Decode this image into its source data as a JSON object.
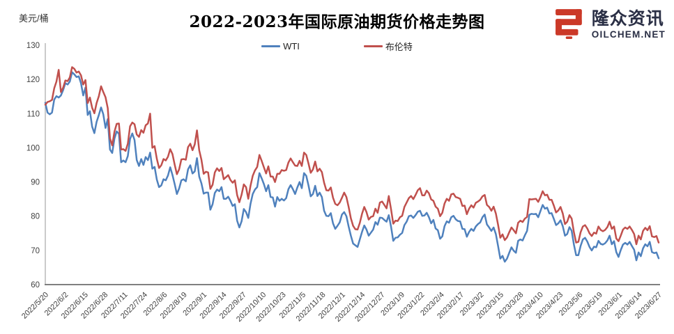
{
  "page": {
    "title": "2022-2023年国际原油期货价格走势图",
    "unit": "美元/桶"
  },
  "logo": {
    "brand": "隆众资讯",
    "site": "OILCHEM.NET",
    "mark_color": "#cb3928",
    "text_color": "#2a2f45"
  },
  "legend": {
    "items": [
      {
        "label": "WTI",
        "color": "#4F81BD"
      },
      {
        "label": "布伦特",
        "color": "#C0504D"
      }
    ]
  },
  "chart_data": {
    "type": "line",
    "title": "2022-2023年国际原油期货价格走势图",
    "xlabel": "",
    "ylabel": "美元/桶",
    "ylim": [
      60,
      130
    ],
    "yticks": [
      60,
      70,
      80,
      90,
      100,
      110,
      120,
      130
    ],
    "grid": false,
    "legend_position": "top-center",
    "x_tick_labels": [
      "2022/5/20",
      "2022/6/2",
      "2022/6/15",
      "2022/6/28",
      "2022/7/11",
      "2022/7/24",
      "2022/8/6",
      "2022/8/19",
      "2022/9/1",
      "2022/9/14",
      "2022/9/27",
      "2022/10/10",
      "2022/10/23",
      "2022/11/5",
      "2022/11/18",
      "2022/12/1",
      "2022/12/14",
      "2022/12/27",
      "2023/1/9",
      "2023/1/22",
      "2023/2/4",
      "2023/2/17",
      "2023/3/2",
      "2023/3/15",
      "2023/3/28",
      "2023/4/10",
      "2023/4/23",
      "2023/5/6",
      "2023/5/19",
      "2023/6/1",
      "2023/6/14",
      "2023/6/27"
    ],
    "x_note": "daily settlement prices, USD/barrel, evenly spaced trading days from 2022/5/20 to 2023/6/27",
    "series": [
      {
        "name": "WTI",
        "color": "#4F81BD",
        "values": [
          113.2,
          110.3,
          109.8,
          110.3,
          114.1,
          115.1,
          114.7,
          115.3,
          116.9,
          118.9,
          118.5,
          119.4,
          122.1,
          121.5,
          120.7,
          120.9,
          118.9,
          115.3,
          117.6,
          109.6,
          110.7,
          106.2,
          104.3,
          107.6,
          109.6,
          111.8,
          109.8,
          105.8,
          108.4,
          99.5,
          98.5,
          102.7,
          104.8,
          104.1,
          95.8,
          96.3,
          95.8,
          97.6,
          102.6,
          104.2,
          102.3,
          96.4,
          94.7,
          96.7,
          95.0,
          97.3,
          96.4,
          98.6,
          93.9,
          94.4,
          90.7,
          88.5,
          89.0,
          90.8,
          90.5,
          91.9,
          94.3,
          92.1,
          89.4,
          86.5,
          88.1,
          90.5,
          90.8,
          90.2,
          93.7,
          94.9,
          92.5,
          93.1,
          97.0,
          91.6,
          89.6,
          86.6,
          86.9,
          86.9,
          81.9,
          83.5,
          86.8,
          87.8,
          87.3,
          88.5,
          85.1,
          85.1,
          85.7,
          84.5,
          83.0,
          83.5,
          78.7,
          76.7,
          78.5,
          82.1,
          81.2,
          79.5,
          83.6,
          86.5,
          87.8,
          88.5,
          92.6,
          91.1,
          89.4,
          87.3,
          89.1,
          85.6,
          85.5,
          82.8,
          85.6,
          84.5,
          85.1,
          84.6,
          85.3,
          87.9,
          89.1,
          87.9,
          86.5,
          88.4,
          90.0,
          88.2,
          92.6,
          91.8,
          89.0,
          85.8,
          86.5,
          88.9,
          85.9,
          86.9,
          85.6,
          81.6,
          80.1,
          80.0,
          80.9,
          77.9,
          76.3,
          77.2,
          78.2,
          80.5,
          81.2,
          80.0,
          77.0,
          74.3,
          72.0,
          71.5,
          71.0,
          73.2,
          75.4,
          77.3,
          76.1,
          74.3,
          75.2,
          76.1,
          78.3,
          77.5,
          79.6,
          79.5,
          78.9,
          78.4,
          80.3,
          77.0,
          72.8,
          73.7,
          73.8,
          74.6,
          75.1,
          77.4,
          78.4,
          80.0,
          80.2,
          79.5,
          80.3,
          81.3,
          81.6,
          80.1,
          80.2,
          81.0,
          79.7,
          77.9,
          78.9,
          76.4,
          75.9,
          73.4,
          74.1,
          77.1,
          78.5,
          78.1,
          79.7,
          80.1,
          79.1,
          78.6,
          78.5,
          76.3,
          76.2,
          74.0,
          75.4,
          76.3,
          75.7,
          77.0,
          77.7,
          78.2,
          79.7,
          80.5,
          77.6,
          76.7,
          75.7,
          76.7,
          74.8,
          71.3,
          67.6,
          68.4,
          66.7,
          67.6,
          69.3,
          70.9,
          69.9,
          69.3,
          72.8,
          73.2,
          72.9,
          74.4,
          75.7,
          80.4,
          80.7,
          80.6,
          80.7,
          79.7,
          81.5,
          83.3,
          82.2,
          82.5,
          80.8,
          80.9,
          79.2,
          77.4,
          77.9,
          78.8,
          77.1,
          74.3,
          74.8,
          76.8,
          75.7,
          71.7,
          68.6,
          68.6,
          71.3,
          73.2,
          73.7,
          72.6,
          71.0,
          70.0,
          71.1,
          70.9,
          72.8,
          71.9,
          71.7,
          72.1,
          72.9,
          74.3,
          71.8,
          72.7,
          69.5,
          68.1,
          70.1,
          71.7,
          72.2,
          71.7,
          72.5,
          71.3,
          70.2,
          67.1,
          69.4,
          68.3,
          70.6,
          71.8,
          71.2,
          72.5,
          69.5,
          69.2,
          69.4,
          67.7
        ]
      },
      {
        "name": "布伦特",
        "color": "#C0504D",
        "values": [
          112.6,
          113.4,
          113.6,
          114.0,
          117.4,
          119.4,
          122.8,
          116.3,
          117.6,
          119.7,
          119.5,
          120.6,
          123.6,
          123.1,
          122.0,
          122.3,
          121.2,
          118.5,
          119.8,
          113.1,
          114.7,
          111.7,
          110.1,
          113.1,
          115.1,
          118.0,
          116.3,
          114.8,
          111.6,
          102.8,
          100.7,
          104.7,
          107.0,
          107.1,
          99.5,
          99.6,
          99.1,
          101.2,
          106.3,
          107.4,
          106.9,
          103.9,
          103.2,
          105.2,
          104.4,
          106.6,
          107.1,
          110.0,
          100.0,
          100.5,
          96.8,
          94.1,
          94.9,
          96.7,
          96.3,
          97.4,
          99.6,
          98.2,
          95.1,
          92.3,
          93.7,
          96.6,
          96.7,
          96.5,
          100.2,
          101.2,
          99.3,
          101.0,
          105.1,
          99.3,
          96.5,
          92.4,
          93.0,
          92.8,
          88.0,
          89.2,
          92.8,
          94.0,
          93.2,
          94.1,
          90.8,
          91.4,
          92.0,
          90.6,
          89.8,
          90.5,
          86.2,
          84.1,
          86.3,
          89.3,
          88.5,
          85.1,
          88.9,
          91.8,
          93.4,
          94.4,
          97.9,
          96.2,
          94.3,
          92.5,
          94.6,
          91.6,
          91.6,
          90.0,
          92.4,
          92.4,
          93.5,
          93.3,
          93.5,
          95.7,
          96.9,
          95.8,
          94.8,
          94.7,
          96.2,
          94.7,
          98.6,
          97.9,
          95.4,
          92.7,
          93.7,
          96.0,
          93.1,
          93.9,
          92.9,
          89.8,
          87.6,
          87.5,
          88.4,
          85.4,
          83.6,
          83.2,
          84.0,
          85.4,
          86.9,
          85.6,
          82.7,
          79.4,
          77.2,
          76.2,
          76.1,
          78.0,
          80.7,
          82.7,
          81.2,
          79.0,
          79.8,
          80.0,
          82.2,
          81.0,
          84.0,
          84.3,
          83.3,
          82.3,
          85.9,
          82.1,
          77.8,
          78.7,
          78.6,
          79.7,
          80.1,
          82.7,
          84.0,
          85.3,
          85.9,
          85.0,
          86.2,
          87.6,
          88.2,
          86.1,
          86.1,
          87.5,
          86.7,
          84.9,
          84.5,
          82.8,
          82.2,
          80.0,
          81.0,
          83.7,
          85.1,
          84.5,
          86.4,
          86.6,
          85.6,
          85.4,
          85.1,
          83.0,
          83.1,
          80.6,
          82.2,
          83.2,
          82.5,
          83.9,
          84.3,
          84.8,
          85.8,
          86.2,
          83.3,
          82.7,
          81.6,
          82.8,
          80.8,
          77.5,
          73.7,
          74.7,
          73.0,
          73.8,
          75.3,
          76.7,
          75.9,
          75.0,
          78.1,
          78.7,
          78.3,
          79.3,
          79.8,
          85.0,
          84.9,
          85.0,
          85.1,
          84.2,
          85.6,
          87.3,
          86.1,
          86.3,
          84.8,
          84.8,
          83.1,
          81.1,
          81.7,
          82.7,
          80.8,
          77.7,
          78.4,
          80.3,
          79.3,
          75.3,
          72.3,
          72.5,
          75.3,
          77.0,
          77.4,
          76.4,
          75.0,
          74.2,
          75.2,
          74.9,
          77.0,
          76.0,
          75.6,
          76.0,
          76.8,
          78.4,
          76.3,
          77.0,
          73.5,
          72.7,
          74.3,
          76.1,
          76.7,
          76.3,
          77.0,
          76.0,
          74.8,
          71.8,
          74.3,
          73.2,
          75.7,
          76.6,
          75.9,
          77.1,
          74.1,
          73.9,
          74.2,
          72.3
        ]
      }
    ],
    "axis_colors": {
      "y_axis": "#a6a6a6",
      "x_axis": "#7f7f7f"
    }
  }
}
